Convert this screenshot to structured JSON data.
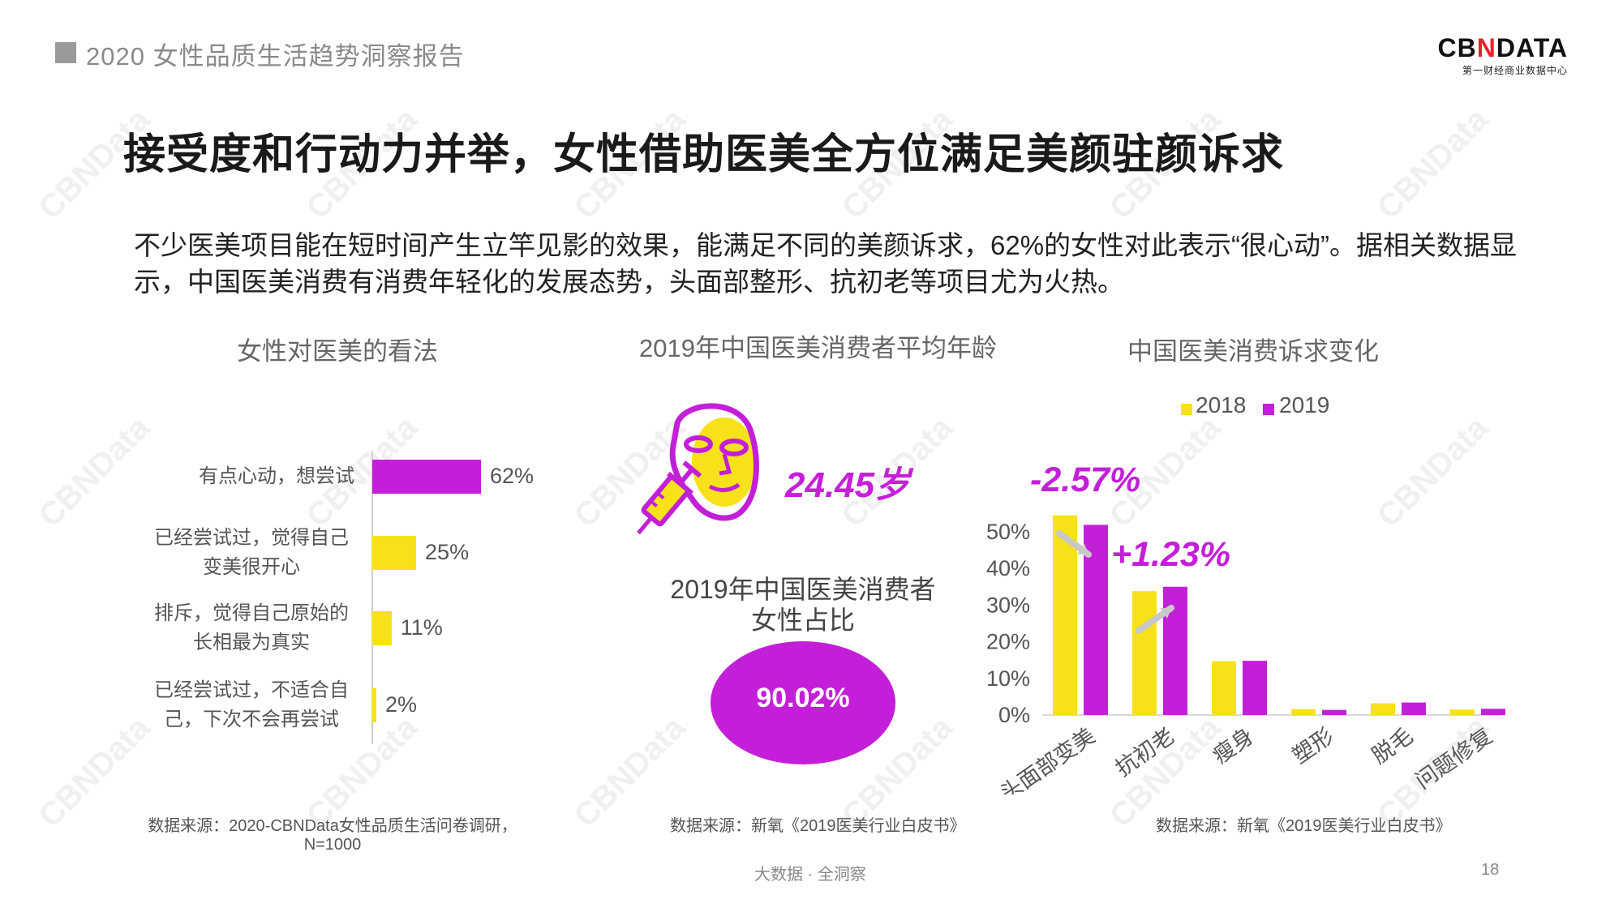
{
  "header": {
    "report_title": "2020 女性品质生活趋势洞察报告",
    "logo_prefix": "CB",
    "logo_mark": "N",
    "logo_suffix": "DATA",
    "logo_subtitle": "第一财经商业数据中心"
  },
  "main_title": "接受度和行动力并举，女性借助医美全方位满足美颜驻颜诉求",
  "intro_text": "不少医美项目能在短时间产生立竿见影的效果，能满足不同的美颜诉求，62%的女性对此表示“很心动”。据相关数据显示，中国医美消费有消费年轻化的发展态势，头面部整形、抗初老等项目尤为火热。",
  "watermark": "CBNData",
  "colors": {
    "yellow": "#f7e21a",
    "purple": "#c41fd8",
    "arrow": "#c8c8c8"
  },
  "chart_data": [
    {
      "type": "bar",
      "orientation": "horizontal",
      "title": "女性对医美的看法",
      "categories": [
        [
          "有点心动，想尝试"
        ],
        [
          "已经尝试过，觉得自己",
          "变美很开心"
        ],
        [
          "排斥，觉得自己原始的",
          "长相最为真实"
        ],
        [
          "已经尝试过，不适合自",
          "己，下次不会再尝试"
        ]
      ],
      "values": [
        62,
        25,
        11,
        2
      ],
      "value_labels": [
        "62%",
        "25%",
        "11%",
        "2%"
      ],
      "bar_colors": [
        "#c41fd8",
        "#f7e21a",
        "#f7e21a",
        "#f7e21a"
      ],
      "source": [
        "数据来源：2020-CBNData女性品质生活问卷调研，",
        "N=1000"
      ]
    },
    {
      "type": "table",
      "title": "2019年中国医美消费者平均年龄",
      "avg_age": "24.45岁",
      "share_title": [
        "2019年中国医美消费者",
        "女性占比"
      ],
      "female_share": "90.02%",
      "source": "数据来源：新氧《2019医美行业白皮书》"
    },
    {
      "type": "bar",
      "title": "中国医美消费诉求变化",
      "categories": [
        "头面部变美",
        "抗初老",
        "瘦身",
        "塑形",
        "脱毛",
        "问题修复"
      ],
      "series": [
        {
          "name": "2018",
          "values": [
            54.5,
            33.8,
            14.7,
            1.6,
            3.2,
            1.5
          ],
          "color": "#f7e21a"
        },
        {
          "name": "2019",
          "values": [
            51.9,
            35.0,
            14.8,
            1.4,
            3.4,
            1.7
          ],
          "color": "#c41fd8"
        }
      ],
      "y_ticks": [
        "0%",
        "10%",
        "20%",
        "30%",
        "40%",
        "50%"
      ],
      "ylim": [
        0,
        55
      ],
      "annotations": [
        "-2.57%",
        "+1.23%"
      ],
      "source": "数据来源：新氧《2019医美行业白皮书》"
    }
  ],
  "footer": {
    "center": "大数据 · 全洞察",
    "page_number": "18"
  }
}
